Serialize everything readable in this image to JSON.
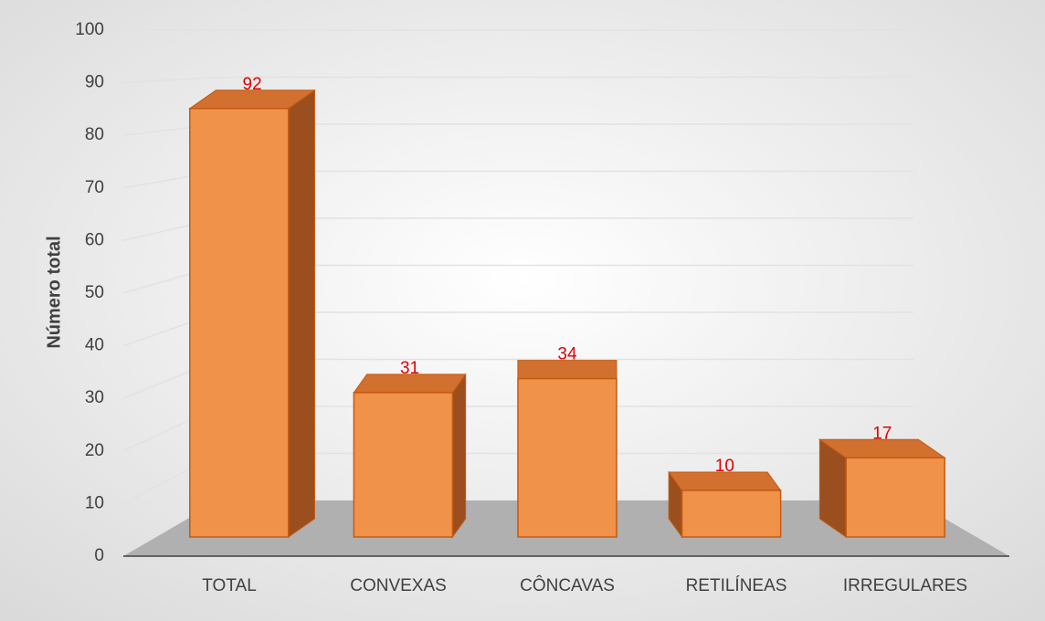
{
  "chart_data": {
    "type": "bar3d",
    "y_label": "Número total",
    "categories": [
      "TOTAL",
      "CONVEXAS",
      "CÔNCAVAS",
      "RETILÍNEAS",
      "IRREGULARES"
    ],
    "values": [
      92,
      31,
      34,
      10,
      17
    ],
    "color": "#f0924a",
    "label_color": "#e00000",
    "ylim": [
      0,
      100
    ],
    "yticks": [
      0,
      10,
      20,
      30,
      40,
      50,
      60,
      70,
      80,
      90,
      100
    ],
    "grid": true
  }
}
